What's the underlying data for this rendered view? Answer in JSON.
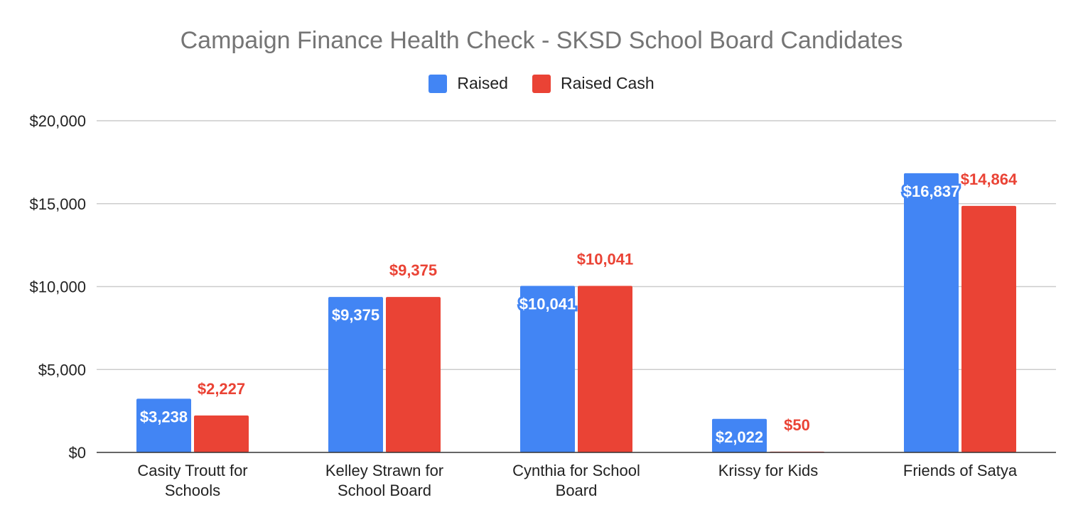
{
  "colors": {
    "raised": "#4285f4",
    "raised_cash": "#ea4335",
    "grid": "#cccccc",
    "axis": "#333333"
  },
  "chart_data": {
    "type": "bar",
    "title": "Campaign Finance Health Check - SKSD School Board Candidates",
    "legend_position": "top",
    "grid": true,
    "ylim": [
      0,
      20000
    ],
    "y_ticks": [
      0,
      5000,
      10000,
      15000,
      20000
    ],
    "y_tick_labels": [
      "$0",
      "$5,000",
      "$10,000",
      "$15,000",
      "$20,000"
    ],
    "categories": [
      [
        "Casity Troutt for",
        "Schools"
      ],
      [
        "Kelley Strawn for",
        "School Board"
      ],
      [
        "Cynthia for School",
        "Board"
      ],
      [
        "Krissy for Kids"
      ],
      [
        "Friends of Satya"
      ]
    ],
    "series": [
      {
        "name": "Raised",
        "values": [
          3238,
          9375,
          10041,
          2022,
          16837
        ],
        "labels": [
          "$3,238",
          "$9,375",
          "$10,041",
          "$2,022",
          "$16,837"
        ]
      },
      {
        "name": "Raised Cash",
        "values": [
          2227,
          9375,
          10041,
          50,
          14864
        ],
        "labels": [
          "$2,227",
          "$9,375",
          "$10,041",
          "$50",
          "$14,864"
        ]
      }
    ]
  }
}
